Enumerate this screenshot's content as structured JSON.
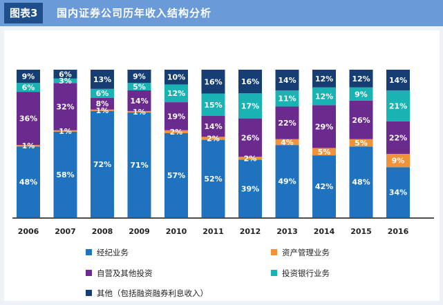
{
  "header": {
    "tag": "图表3",
    "title": "国内证券公司历年收入结构分析"
  },
  "colors": {
    "brokerage": "#1f73be",
    "asset_mgmt": "#f0923a",
    "proprietary": "#6b2a8e",
    "ib": "#19b3b3",
    "other": "#163e73"
  },
  "chart_data": {
    "type": "bar",
    "stacked": true,
    "percent": true,
    "title": "国内证券公司历年收入结构分析",
    "xlabel": "",
    "ylabel": "",
    "ylim": [
      0,
      100
    ],
    "categories": [
      "2006",
      "2007",
      "2008",
      "2009",
      "2010",
      "2011",
      "2012",
      "2013",
      "2014",
      "2015",
      "2016"
    ],
    "series": [
      {
        "name": "经纪业务",
        "key": "brokerage",
        "values": [
          48,
          58,
          72,
          71,
          57,
          52,
          39,
          49,
          42,
          48,
          34
        ],
        "labels": [
          "48%",
          "58%",
          "72%",
          "71%",
          "57%",
          "52%",
          "39%",
          "49%",
          "42%",
          "48%",
          "34%"
        ]
      },
      {
        "name": "资产管理业务",
        "key": "asset_mgmt",
        "values": [
          1,
          1,
          1,
          1,
          2,
          2,
          2,
          4,
          5,
          5,
          9
        ],
        "labels": [
          "1%",
          "1%",
          "1%",
          "1%",
          "2%",
          "2%",
          "2%",
          "4%",
          "5%",
          "5%",
          "9%"
        ]
      },
      {
        "name": "自营及其他投资",
        "key": "proprietary",
        "values": [
          36,
          32,
          8,
          14,
          19,
          14,
          26,
          22,
          29,
          26,
          22
        ],
        "labels": [
          "36%",
          "32%",
          "8%",
          "14%",
          "19%",
          "14%",
          "26%",
          "22%",
          "29%",
          "26%",
          "22%"
        ]
      },
      {
        "name": "投资银行业务",
        "key": "ib",
        "values": [
          6,
          3,
          6,
          5,
          12,
          15,
          17,
          11,
          12,
          9,
          21
        ],
        "labels": [
          "6%",
          "3%",
          "6%",
          "5%",
          "12%",
          "15%",
          "17%",
          "11%",
          "12%",
          "9%",
          "21%"
        ]
      },
      {
        "name": "其他（包括融资融券利息收入）",
        "key": "other",
        "values": [
          9,
          6,
          13,
          9,
          10,
          16,
          16,
          14,
          12,
          12,
          14
        ],
        "labels": [
          "9%",
          "6%",
          "13%",
          "9%",
          "10%",
          "16%",
          "16%",
          "14%",
          "12%",
          "12%",
          "14%"
        ]
      }
    ],
    "legend": {
      "placement": "bottom",
      "order": [
        "brokerage",
        "asset_mgmt",
        "proprietary",
        "ib",
        "other"
      ]
    },
    "grid": false
  }
}
